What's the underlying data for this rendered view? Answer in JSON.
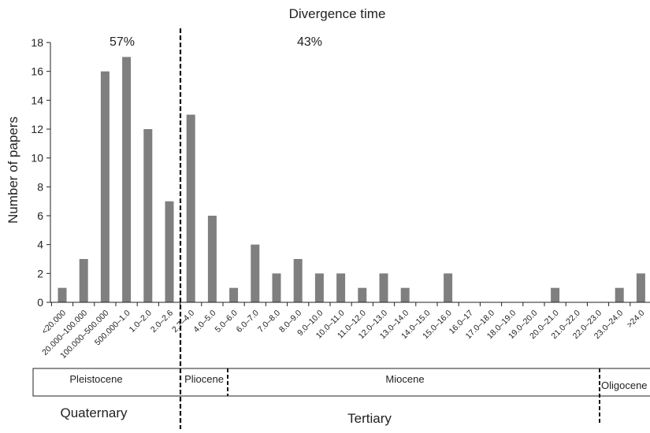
{
  "chart_data": {
    "type": "bar",
    "title": "Divergence time",
    "ylabel": "Number of papers",
    "xlabel": "",
    "ylim": [
      0,
      18
    ],
    "yticks": [
      0,
      2,
      4,
      6,
      8,
      10,
      12,
      14,
      16,
      18
    ],
    "grid": false,
    "legend": "none",
    "categories": [
      "<20.000",
      "20.000–100.000",
      "100.000–500.000",
      "500.000–1.0",
      "1.0–2.0",
      "2.0–2.6",
      "2.7–4.0",
      "4.0–5.0",
      "5.0–6.0",
      "6.0–7.0",
      "7.0–8.0",
      "8.0–9.0",
      "9.0–10.0",
      "10.0–11.0",
      "11.0–12.0",
      "12.0–13.0",
      "13.0–14.0",
      "14.0–15.0",
      "15.0–16.0",
      "16.0–17",
      "17.0–18.0",
      "18.0–19.0",
      "19.0–20.0",
      "20.0–21.0",
      "21.0–22.0",
      "22.0–23.0",
      "23.0–24.0",
      ">24.0"
    ],
    "values": [
      1,
      3,
      16,
      17,
      12,
      7,
      13,
      6,
      1,
      4,
      2,
      3,
      2,
      2,
      1,
      2,
      1,
      0,
      2,
      0,
      0,
      0,
      0,
      1,
      0,
      0,
      1,
      2
    ],
    "bar_color": "#7f7f7f",
    "annotations": {
      "left_percent": "57%",
      "right_percent": "43%"
    },
    "epochs": [
      "Pleistocene",
      "Pliocene",
      "Miocene",
      "Oligocene"
    ],
    "periods": [
      "Quaternary",
      "Tertiary"
    ]
  }
}
